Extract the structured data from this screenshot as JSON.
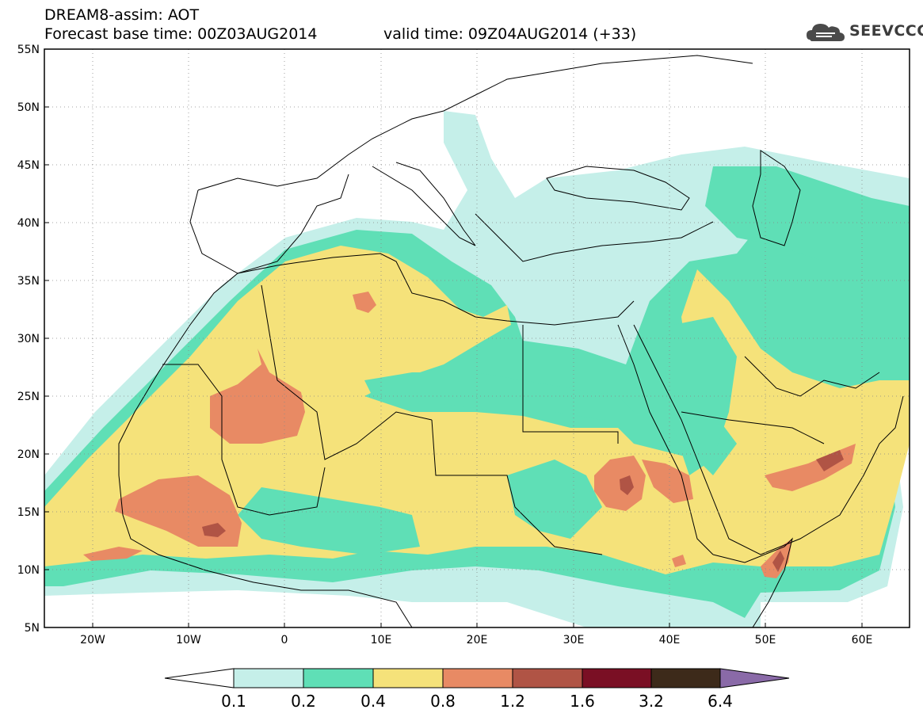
{
  "title": {
    "line1": "DREAM8-assim: AOT",
    "base_time": "Forecast base time: 00Z03AUG2014",
    "valid_time": "valid time: 09Z04AUG2014 (+33)"
  },
  "logo": {
    "text": "SEEVCCC",
    "icon": "cloud-icon"
  },
  "map": {
    "lat_ticks": [
      "55N",
      "50N",
      "45N",
      "40N",
      "35N",
      "30N",
      "25N",
      "20N",
      "15N",
      "10N",
      "5N"
    ],
    "lon_ticks": [
      "20W",
      "10W",
      "0",
      "10E",
      "20E",
      "30E",
      "40E",
      "50E",
      "60E"
    ],
    "extent": {
      "lon_min": -25,
      "lon_max": 65,
      "lat_min": 5,
      "lat_max": 55
    },
    "variable": "Aerosol optical thickness (AOT)"
  },
  "colorbar": {
    "levels": [
      "0.1",
      "0.2",
      "0.4",
      "0.8",
      "1.2",
      "1.6",
      "3.2",
      "6.4"
    ],
    "colors": [
      "#c5efe9",
      "#5fdfb6",
      "#f5e27a",
      "#e88a64",
      "#b05445",
      "#7a0f24",
      "#3d2a1a",
      "#8a6aa8"
    ],
    "under_color": "#ffffff"
  },
  "colors": {
    "land_bg": "#ffffff",
    "border": "#000000",
    "grid": "#888888"
  }
}
